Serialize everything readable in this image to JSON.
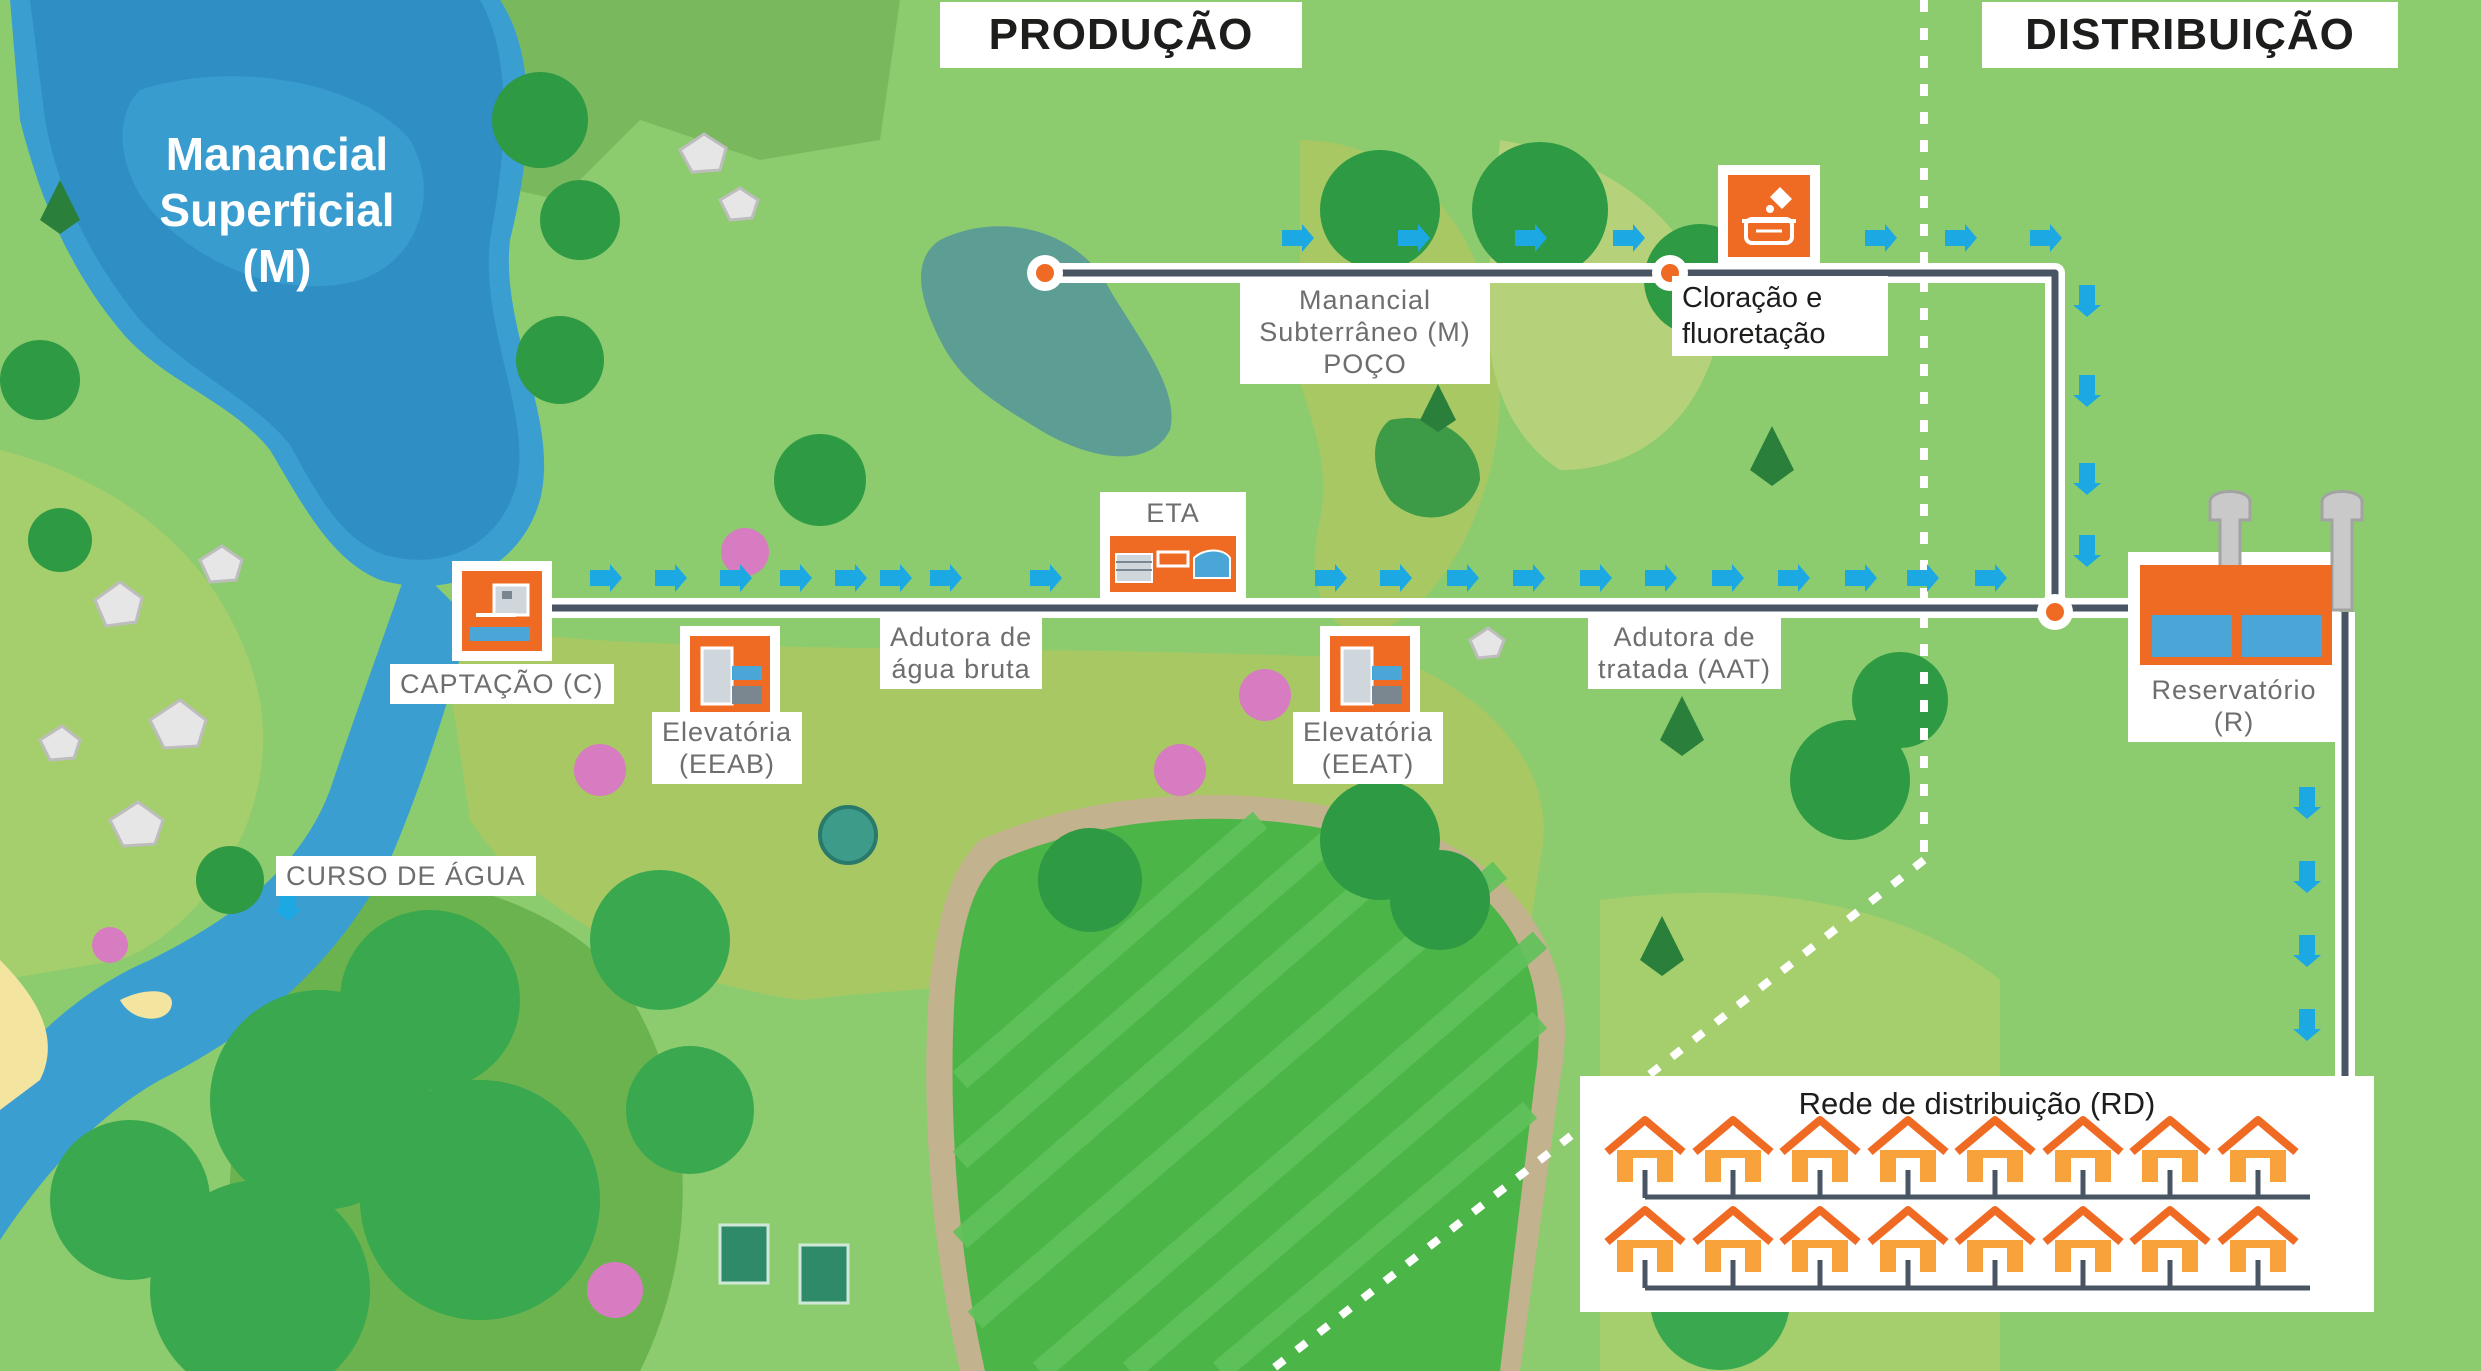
{
  "sections": {
    "production": "PRODUÇÃO",
    "distribution": "DISTRIBUIÇÃO"
  },
  "labels": {
    "lake": [
      "Manancial",
      "Superficial",
      "(M)"
    ],
    "groundwater": [
      "Manancial",
      "Subterrâneo (M)",
      "POÇO"
    ],
    "chlorination": [
      "Cloração e",
      "fluoretação"
    ],
    "eta": "ETA",
    "intake": "CAPTAÇÃO (C)",
    "raw_main": [
      "Adutora de",
      "água bruta"
    ],
    "pump_raw": [
      "Elevatória",
      "(EEAB)"
    ],
    "pump_treated": [
      "Elevatória",
      "(EEAT)"
    ],
    "treated_main": [
      "Adutora de",
      "tratada (AAT)"
    ],
    "reservoir": [
      "Reservatório",
      "(R)"
    ],
    "stream": "CURSO DE ÁGUA",
    "network": "Rede de distribuição (RD)"
  },
  "icons": {
    "intake": "intake-station-icon",
    "pump_raw": "pumping-station-icon",
    "pump_treated": "pumping-station-icon",
    "eta": "treatment-plant-icon",
    "chlorination": "chemical-dosing-icon",
    "reservoir": "water-tank-icon",
    "house": "house-icon",
    "flow": "flow-arrow-icon"
  },
  "colors": {
    "accent_orange": "#ef6b24",
    "pipe": "#4a5563",
    "flow_arrow": "#1ca8e3",
    "water": "#3a9fd0",
    "grass": "#8ccc6f"
  }
}
